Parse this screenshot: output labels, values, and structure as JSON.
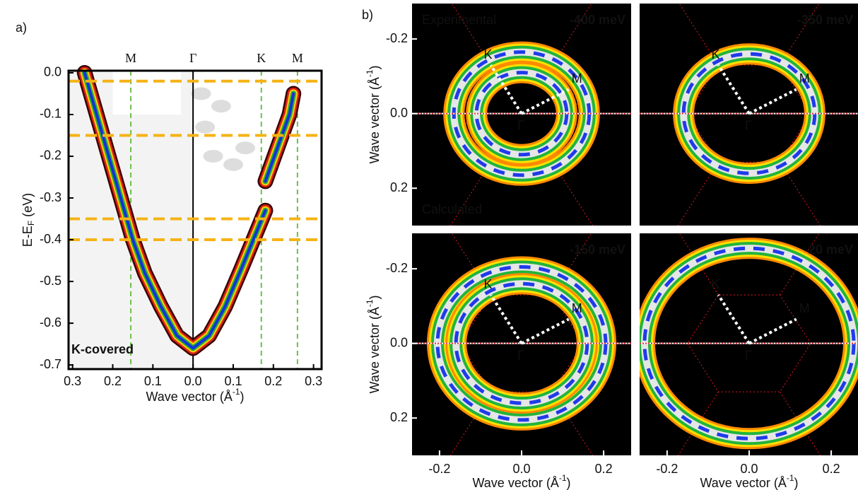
{
  "chart_data": [
    {
      "type": "line",
      "panel": "a)",
      "xlabel": [
        "Wave vector (Å",
        "-1",
        ")"
      ],
      "ylabel": [
        "E-E",
        "F",
        " (eV)"
      ],
      "xlim": [
        -0.31,
        0.32
      ],
      "ylim": [
        -0.71,
        0.005
      ],
      "xticks": [
        {
          "value": -0.3,
          "label": "0.3"
        },
        {
          "value": -0.2,
          "label": "0.2"
        },
        {
          "value": -0.1,
          "label": "0.1"
        },
        {
          "value": 0,
          "label": "0.0"
        },
        0.1,
        0.2,
        0.3
      ],
      "yticks": [
        {
          "value": 0,
          "label": "0.0"
        },
        -0.1,
        -0.2,
        -0.3,
        -0.4,
        -0.5,
        -0.6,
        -0.7
      ],
      "symmetry_points": {
        "labels": [
          "M",
          "Γ",
          "K",
          "M"
        ],
        "x": [
          -0.155,
          0,
          0.17,
          0.26
        ]
      },
      "energy_cuts": [
        -0.02,
        -0.15,
        -0.35,
        -0.4
      ],
      "annotation": "K-covered",
      "x": [
        -0.27,
        -0.24,
        -0.21,
        -0.18,
        -0.15,
        -0.12,
        -0.08,
        -0.04,
        0,
        0.04,
        0.08,
        0.12,
        0.15,
        0.18,
        null,
        0.18,
        0.21,
        0.24,
        0.25
      ],
      "values": [
        0.0,
        -0.1,
        -0.2,
        -0.3,
        -0.4,
        -0.48,
        -0.56,
        -0.63,
        -0.66,
        -0.63,
        -0.56,
        -0.47,
        -0.4,
        -0.33,
        null,
        -0.26,
        -0.18,
        -0.1,
        -0.05
      ]
    },
    {
      "type": "contour",
      "panel": "b)",
      "label": "-400 meV",
      "label_color": "#ffffff",
      "annotations": [
        "Experimental",
        "Calculated"
      ],
      "points": [
        "K",
        "M",
        "Γ"
      ],
      "radii": [
        0.165,
        0.11
      ],
      "xlim": [
        -0.267,
        0.267
      ],
      "ylim": [
        -0.295,
        0.3
      ],
      "yticks": [
        -0.2,
        {
          "value": 0,
          "label": "0.0"
        },
        0.2
      ],
      "ylabel": [
        "Wave vector (Å",
        "-1",
        ")"
      ]
    },
    {
      "type": "contour",
      "label": "-350 meV",
      "label_color": "#ffffff",
      "points": [
        "K",
        "M",
        "Γ"
      ],
      "radii": [
        0.16
      ],
      "xlim": [
        -0.267,
        0.267
      ],
      "ylim": [
        -0.295,
        0.3
      ]
    },
    {
      "type": "contour",
      "label": "-150 meV",
      "label_color": "#ffffff",
      "points": [
        "K",
        "M",
        "Γ"
      ],
      "radii": [
        0.205,
        0.16
      ],
      "xlim": [
        -0.267,
        0.267
      ],
      "ylim": [
        -0.295,
        0.3
      ],
      "xticks": [
        -0.2,
        {
          "value": 0,
          "label": "0.0"
        },
        0.2
      ],
      "yticks": [
        -0.2,
        {
          "value": 0,
          "label": "0.0"
        },
        0.2
      ],
      "xlabel": [
        "Wave vector (Å",
        "-1",
        ")"
      ],
      "ylabel": [
        "Wave vector (Å",
        "-1",
        ")"
      ]
    },
    {
      "type": "contour",
      "label": "-20 meV",
      "label_color": "#ff0000",
      "points": [
        "K",
        "M",
        "Γ"
      ],
      "radii": [
        0.255
      ],
      "xlim": [
        -0.267,
        0.267
      ],
      "ylim": [
        -0.295,
        0.3
      ],
      "xticks": [
        -0.2,
        {
          "value": 0,
          "label": "0.0"
        },
        0.2
      ],
      "xlabel": [
        "Wave vector (Å",
        "-1",
        ")"
      ]
    }
  ]
}
